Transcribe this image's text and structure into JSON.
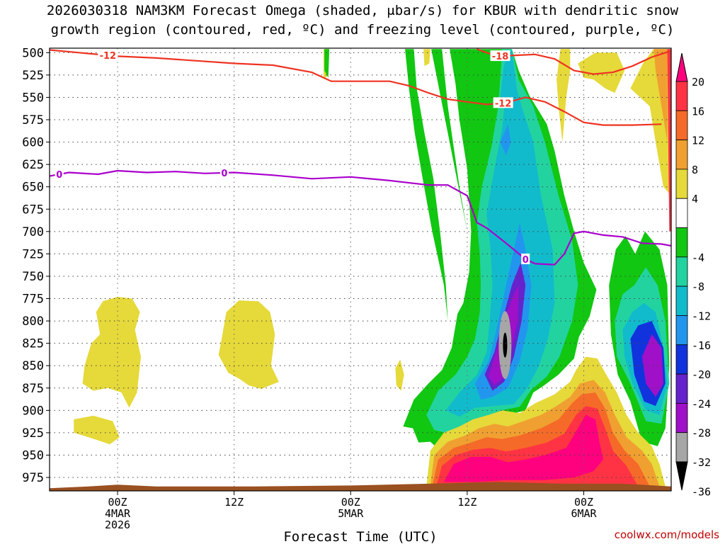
{
  "title_line1": "2026030318 NAM3KM Forecast Omega (shaded, μbar/s) for KBUR with dendritic snow",
  "title_line2": "growth region (contoured, red, ºC) and freezing level (contoured, purple, ºC)",
  "credit": "coolwx.com/models",
  "colors": {
    "dendritic_contour": "#ee3322",
    "freezing_contour": "#aa00cc",
    "terrain": "#9a5020",
    "axis": "#000000"
  },
  "chart_data": {
    "type": "heatmap",
    "title": "2026030318 NAM3KM Forecast Omega (shaded, μbar/s) for KBUR with dendritic snow growth region (contoured, red, ºC) and freezing level (contoured, purple, ºC)",
    "xlabel": "Forecast Time (UTC)",
    "ylabel": "",
    "y_scale": "pressure (hPa), reversed",
    "ylim": [
      990,
      495
    ],
    "xlim_hours_from_init": [
      -1,
      63
    ],
    "x_ticks": [
      {
        "hour": 6,
        "label": [
          "00Z",
          "4MAR",
          "2026"
        ]
      },
      {
        "hour": 18,
        "label": [
          "12Z"
        ]
      },
      {
        "hour": 30,
        "label": [
          "00Z",
          "5MAR"
        ]
      },
      {
        "hour": 42,
        "label": [
          "12Z"
        ]
      },
      {
        "hour": 54,
        "label": [
          "00Z",
          "6MAR"
        ]
      }
    ],
    "y_ticks": [
      500,
      525,
      550,
      575,
      600,
      625,
      650,
      675,
      700,
      725,
      750,
      775,
      800,
      825,
      850,
      875,
      900,
      925,
      950,
      975
    ],
    "grid": true,
    "colorbar": {
      "placement": "right",
      "labels": [
        "20",
        "16",
        "12",
        "8",
        "4",
        "-4",
        "-8",
        "-12",
        "-16",
        "-20",
        "-24",
        "-28",
        "-32",
        "-36"
      ],
      "bands": [
        {
          "range": "above 20",
          "color": "#ff007f"
        },
        {
          "range": "16 to 20",
          "color": "#ff3344"
        },
        {
          "range": "12 to 16",
          "color": "#f56a28"
        },
        {
          "range": "8 to 12",
          "color": "#f0a030"
        },
        {
          "range": "4 to 8",
          "color": "#e6d93a"
        },
        {
          "range": "-4 to 4",
          "color": "#ffffff"
        },
        {
          "range": "-8 to -4",
          "color": "#11c711"
        },
        {
          "range": "-12 to -8",
          "color": "#22d3a0"
        },
        {
          "range": "-16 to -12",
          "color": "#11bbcc"
        },
        {
          "range": "-20 to -16",
          "color": "#2296ee"
        },
        {
          "range": "-24 to -20",
          "color": "#1133dd"
        },
        {
          "range": "-28 to -24",
          "color": "#6622cc"
        },
        {
          "range": "-32 to -28",
          "color": "#a010c8"
        },
        {
          "range": "-36 to -32",
          "color": "#a6a6a6"
        },
        {
          "range": "below -36",
          "color": "#000000"
        }
      ]
    },
    "contours": {
      "dendritic_minus12": {
        "label": "-12",
        "color": "#ee3322",
        "points_hour_hpa": [
          [
            -1,
            497
          ],
          [
            2,
            500
          ],
          [
            6,
            504
          ],
          [
            10,
            506
          ],
          [
            14,
            509
          ],
          [
            18,
            512
          ],
          [
            22,
            514
          ],
          [
            26,
            522
          ],
          [
            28,
            532
          ],
          [
            31,
            532
          ],
          [
            34,
            532
          ],
          [
            36,
            537
          ],
          [
            38,
            545
          ],
          [
            40,
            552
          ],
          [
            42,
            555
          ],
          [
            44,
            558
          ],
          [
            46,
            556
          ],
          [
            48,
            550
          ],
          [
            50,
            555
          ],
          [
            52,
            566
          ],
          [
            54,
            578
          ],
          [
            56,
            581
          ],
          [
            59,
            581
          ],
          [
            62,
            580
          ]
        ]
      },
      "dendritic_minus18": {
        "label": "-18",
        "color": "#ee3322",
        "points_hour_hpa": [
          [
            43,
            496
          ],
          [
            45,
            504
          ],
          [
            47,
            503
          ],
          [
            49,
            502
          ],
          [
            51,
            507
          ],
          [
            53,
            520
          ],
          [
            55,
            524
          ],
          [
            57,
            522
          ],
          [
            59,
            515
          ],
          [
            61,
            505
          ],
          [
            63,
            498
          ]
        ]
      },
      "freezing_level": {
        "label": "0",
        "color": "#aa00cc",
        "label_positions_hour": [
          0,
          17,
          48
        ],
        "points_hour_hpa": [
          [
            -1,
            638
          ],
          [
            1,
            634
          ],
          [
            4,
            636
          ],
          [
            6,
            632
          ],
          [
            9,
            634
          ],
          [
            12,
            633
          ],
          [
            15,
            635
          ],
          [
            18,
            634
          ],
          [
            22,
            637
          ],
          [
            26,
            641
          ],
          [
            30,
            639
          ],
          [
            34,
            643
          ],
          [
            38,
            648
          ],
          [
            40,
            648
          ],
          [
            42,
            660
          ],
          [
            43,
            690
          ],
          [
            44,
            696
          ],
          [
            46,
            713
          ],
          [
            48,
            731
          ],
          [
            49,
            736
          ],
          [
            51,
            737
          ],
          [
            52,
            725
          ],
          [
            53,
            702
          ],
          [
            54,
            700
          ],
          [
            56,
            704
          ],
          [
            58,
            706
          ],
          [
            60,
            713
          ],
          [
            62,
            714
          ],
          [
            63,
            716
          ]
        ]
      }
    },
    "regions": [
      {
        "name": "weak ascent 4MAR 00Z",
        "value_range": "4 to 8",
        "hour_range": [
          3,
          8
        ],
        "hpa_range": [
          772,
          898
        ]
      },
      {
        "name": "weak ascent 4MAR 00Z low",
        "value_range": "4 to 8",
        "hour_range": [
          1,
          5
        ],
        "hpa_range": [
          905,
          940
        ]
      },
      {
        "name": "weak ascent 4MAR 12Z",
        "value_range": "4 to 8",
        "hour_range": [
          16,
          21
        ],
        "hpa_range": [
          775,
          878
        ]
      },
      {
        "name": "weak ascent 5MAR 12Z near surface",
        "value_range": "16 to above 20",
        "hour_range": [
          38,
          56
        ],
        "hpa_range": [
          860,
          985
        ]
      },
      {
        "name": "strong descent 5MAR 16Z",
        "value_range": "-36 to below -36",
        "hour_range": [
          43,
          53
        ],
        "hpa_range": [
          540,
          905
        ]
      },
      {
        "name": "upper descent band",
        "value_range": "-4 to -8",
        "hour_range": [
          36,
          42
        ],
        "hpa_range": [
          496,
          920
        ]
      },
      {
        "name": "late upper ascent",
        "value_range": "4 to 12",
        "hour_range": [
          52,
          63
        ],
        "hpa_range": [
          496,
          650
        ]
      },
      {
        "name": "late descent 6MAR",
        "value_range": "-8 to -32",
        "hour_range": [
          56,
          63
        ],
        "hpa_range": [
          690,
          930
        ]
      }
    ]
  }
}
